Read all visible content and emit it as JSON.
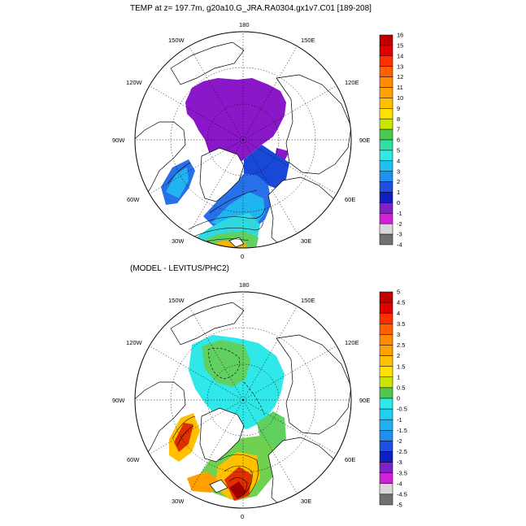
{
  "panels": [
    {
      "title": "TEMP at z= 197.7m, g20a10.G_JRA.RA0304.gx1v7.C01 [189-208]",
      "lon_labels": [
        "180",
        "150E",
        "120E",
        "90E",
        "60E",
        "30E",
        "0",
        "30W",
        "60W",
        "90W",
        "120W",
        "150W"
      ],
      "colorbar": {
        "labels": [
          "16",
          "15",
          "14",
          "13",
          "12",
          "11",
          "10",
          "9",
          "8",
          "7",
          "6",
          "5",
          "4",
          "3",
          "2",
          "1",
          "0",
          "-1",
          "-2",
          "-3",
          "-4"
        ],
        "colors": [
          "#c00000",
          "#e00000",
          "#ff3000",
          "#ff6000",
          "#ff8c00",
          "#ffa200",
          "#ffc000",
          "#ffe000",
          "#c8e600",
          "#50c850",
          "#30e0a0",
          "#30e8e8",
          "#20c0f0",
          "#2090f0",
          "#2050e0",
          "#1020c0",
          "#8020c8",
          "#d020d8",
          "#d8d8d8",
          "#707070"
        ]
      }
    },
    {
      "title": "(MODEL - LEVITUS/PHC2)",
      "lon_labels": [
        "180",
        "150E",
        "120E",
        "90E",
        "60E",
        "30E",
        "0",
        "30W",
        "60W",
        "90W",
        "120W",
        "150W"
      ],
      "colorbar": {
        "labels": [
          "5",
          "4.5",
          "4",
          "3.5",
          "3",
          "2.5",
          "2",
          "1.5",
          "1",
          "0.5",
          "0",
          "-0.5",
          "-1",
          "-1.5",
          "-2",
          "-2.5",
          "-3",
          "-3.5",
          "-4",
          "-4.5",
          "-5"
        ],
        "colors": [
          "#c00000",
          "#e00000",
          "#ff3000",
          "#ff6000",
          "#ff8c00",
          "#ffa200",
          "#ffc000",
          "#ffe000",
          "#c8e600",
          "#50c850",
          "#30e8e8",
          "#20d0f0",
          "#20b0f0",
          "#2090f0",
          "#2050e0",
          "#1020c0",
          "#8020c8",
          "#d020d8",
          "#d8d8d8",
          "#707070"
        ]
      }
    }
  ]
}
